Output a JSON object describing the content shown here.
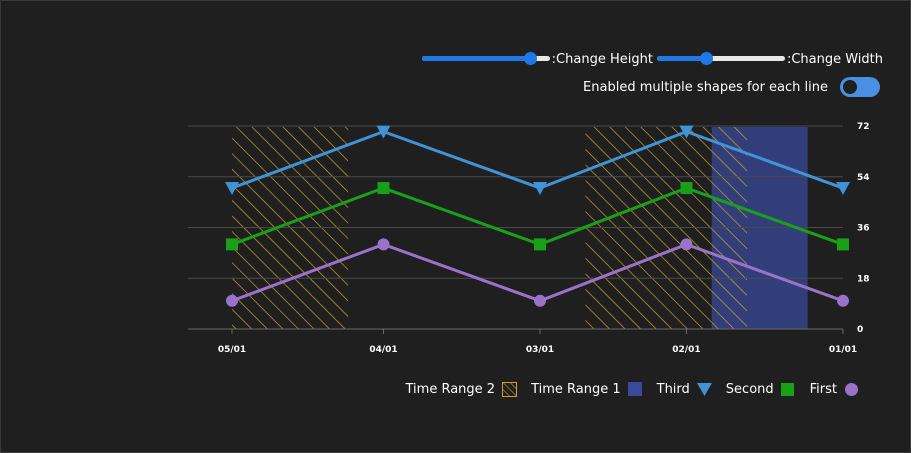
{
  "controls": {
    "height_slider": {
      "label": ":Change Height",
      "value": 0.85
    },
    "width_slider": {
      "label": ":Change Width",
      "value": 0.38
    },
    "toggle": {
      "label": "Enabled multiple shapes for each line",
      "on": true
    }
  },
  "chart_data": {
    "type": "line",
    "x": [
      "05/01",
      "04/01",
      "03/01",
      "02/01",
      "01/01"
    ],
    "x_dates": [
      "2020-05-01",
      "2020-04-01",
      "2020-03-01",
      "2020-02-01",
      "2020-01-01"
    ],
    "yticks": [
      0,
      18,
      36,
      54,
      72
    ],
    "ylim": [
      0,
      72
    ],
    "y_axis_side": "right",
    "grid": true,
    "legend_position": "bottom-right",
    "series": [
      {
        "name": "First",
        "values": [
          10,
          30,
          10,
          30,
          10
        ],
        "color": "#9b72c9",
        "marker": "circle"
      },
      {
        "name": "Second",
        "values": [
          30,
          50,
          30,
          50,
          30
        ],
        "color": "#18a018",
        "marker": "square"
      },
      {
        "name": "Third",
        "values": [
          50,
          70,
          50,
          70,
          50
        ],
        "color": "#3f93d6",
        "marker": "triangle-down"
      }
    ],
    "ranges": [
      {
        "name": "Time Range 1",
        "color": "#3a4a9a",
        "pattern": "solid",
        "from": "2020-01-08",
        "to": "2020-01-27"
      },
      {
        "name": "Time Range 2",
        "color": "#c9a227",
        "pattern": "hatch",
        "spans": [
          [
            "2020-04-08",
            "2020-05-01"
          ],
          [
            "2020-01-20",
            "2020-02-21"
          ]
        ]
      }
    ]
  },
  "legend": [
    {
      "label": "Time Range 2",
      "icon": "hatch-square-icon"
    },
    {
      "label": "Time Range 1",
      "icon": "solid-square-icon"
    },
    {
      "label": "Third",
      "icon": "triangle-down-icon"
    },
    {
      "label": "Second",
      "icon": "square-icon"
    },
    {
      "label": "First",
      "icon": "circle-icon"
    }
  ]
}
